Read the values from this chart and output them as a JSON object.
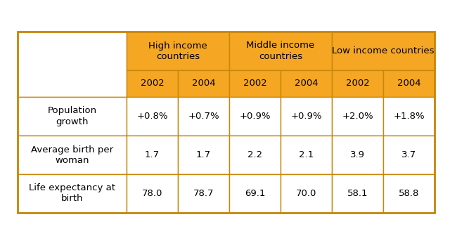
{
  "header_groups": [
    {
      "label": "High income\ncountries",
      "col_span": [
        1,
        2
      ]
    },
    {
      "label": "Middle income\ncountries",
      "col_span": [
        3,
        4
      ]
    },
    {
      "label": "Low income countries",
      "col_span": [
        5,
        6
      ]
    }
  ],
  "year_headers": [
    "2002",
    "2004",
    "2002",
    "2004",
    "2002",
    "2004"
  ],
  "row_labels": [
    "Population\ngrowth",
    "Average birth per\nwoman",
    "Life expectancy at\nbirth"
  ],
  "data": [
    [
      "+0.8%",
      "+0.7%",
      "+0.9%",
      "+0.9%",
      "+2.0%",
      "+1.8%"
    ],
    [
      "1.7",
      "1.7",
      "2.2",
      "2.1",
      "3.9",
      "3.7"
    ],
    [
      "78.0",
      "78.7",
      "69.1",
      "70.0",
      "58.1",
      "58.8"
    ]
  ],
  "orange_color": "#F5A623",
  "white_color": "#FFFFFF",
  "border_color": "#C8860A",
  "text_color": "#000000",
  "background_color": "#FFFFFF",
  "fig_width": 6.4,
  "fig_height": 3.56,
  "dpi": 100
}
